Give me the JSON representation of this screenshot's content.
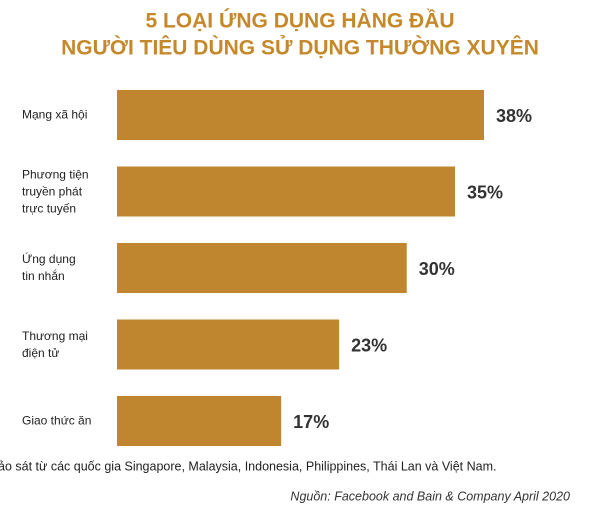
{
  "chart_data": {
    "type": "bar",
    "orientation": "horizontal",
    "title": [
      "5 LOẠI ỨNG DỤNG HÀNG ĐẦU",
      "NGƯỜI TIÊU DÙNG SỬ DỤNG THƯỜNG XUYÊN"
    ],
    "categories": [
      "Mạng xã hội",
      "Phương tiện\ntruyền phát\ntrực tuyến",
      "Ứng dụng\ntin nhắn",
      "Thương mại\nđiện tử",
      "Giao thức ăn"
    ],
    "values": [
      38,
      35,
      30,
      23,
      17
    ],
    "value_labels": [
      "38%",
      "35%",
      "30%",
      "23%",
      "17%"
    ],
    "color": "#c0862f",
    "note": "ảo sát từ các quốc gia Singapore, Malaysia, Indonesia, Philippines, Thái Lan và Việt Nam.",
    "source": "Nguồn: Facebook and Bain & Company April 2020"
  }
}
